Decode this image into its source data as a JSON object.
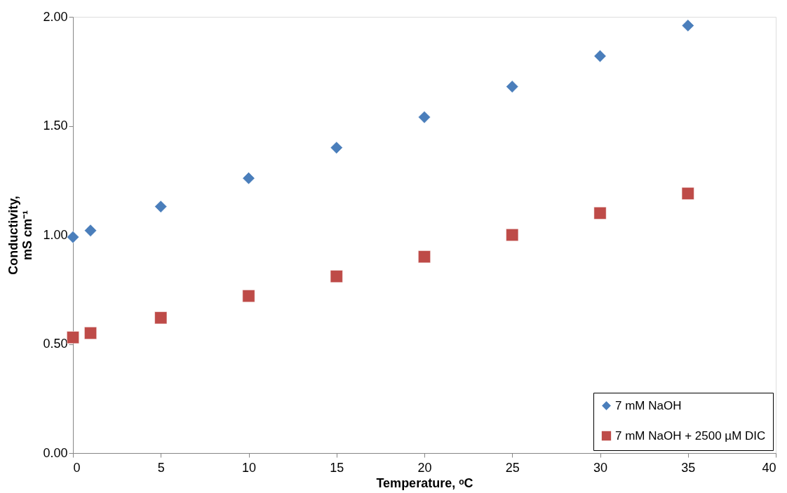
{
  "chart_data": {
    "type": "scatter",
    "xlabel": "Temperature, ᵒC",
    "ylabel": "Conductivity,\nmS cm⁻¹",
    "x": [
      0,
      1,
      5,
      10,
      15,
      20,
      25,
      30,
      35
    ],
    "series": [
      {
        "name": "7 mM NaOH",
        "color": "#4a7ebb",
        "marker": "diamond",
        "values": [
          0.99,
          1.02,
          1.13,
          1.26,
          1.4,
          1.54,
          1.68,
          1.82,
          1.96
        ]
      },
      {
        "name": "7 mM NaOH + 2500 µM DIC",
        "color": "#be4b48",
        "marker": "square",
        "values": [
          0.53,
          0.55,
          0.62,
          0.72,
          0.81,
          0.9,
          1.0,
          1.1,
          1.19
        ]
      }
    ],
    "xlim": [
      0,
      40
    ],
    "xticks": [
      0,
      5,
      10,
      15,
      20,
      25,
      30,
      35,
      40
    ],
    "ylim": [
      0,
      2
    ],
    "yticks": [
      {
        "value": 0,
        "label": "0.00"
      },
      {
        "value": 0.5,
        "label": "0.50"
      },
      {
        "value": 1,
        "label": "1.00"
      },
      {
        "value": 1.5,
        "label": "1.50"
      },
      {
        "value": 2,
        "label": "2.00"
      }
    ],
    "grid": false,
    "legend": "bottom right"
  }
}
